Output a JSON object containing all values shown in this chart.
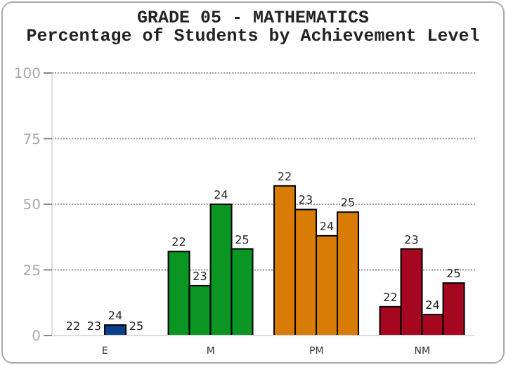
{
  "chart_data": {
    "type": "bar",
    "title": "GRADE 05 - MATHEMATICS",
    "subtitle": "Percentage of Students by Achievement Level",
    "categories": [
      "E",
      "M",
      "PM",
      "NM"
    ],
    "series": [
      {
        "name": "22",
        "colors": [
          "#0b3f8c",
          "#0b9624",
          "#d97c06",
          "#a50620"
        ],
        "values": [
          0,
          32,
          57,
          11
        ]
      },
      {
        "name": "23",
        "colors": [
          "#0b3f8c",
          "#0b9624",
          "#d97c06",
          "#a50620"
        ],
        "values": [
          0,
          19,
          48,
          33
        ]
      },
      {
        "name": "24",
        "colors": [
          "#0b3f8c",
          "#0b9624",
          "#d97c06",
          "#a50620"
        ],
        "values": [
          4,
          50,
          38,
          8
        ]
      },
      {
        "name": "25",
        "colors": [
          "#0b3f8c",
          "#0b9624",
          "#d97c06",
          "#a50620"
        ],
        "values": [
          0,
          33,
          47,
          20
        ]
      }
    ],
    "ylim": [
      0,
      100
    ],
    "yticks": [
      0,
      25,
      50,
      75,
      100
    ],
    "grid": "y",
    "legend": false
  }
}
